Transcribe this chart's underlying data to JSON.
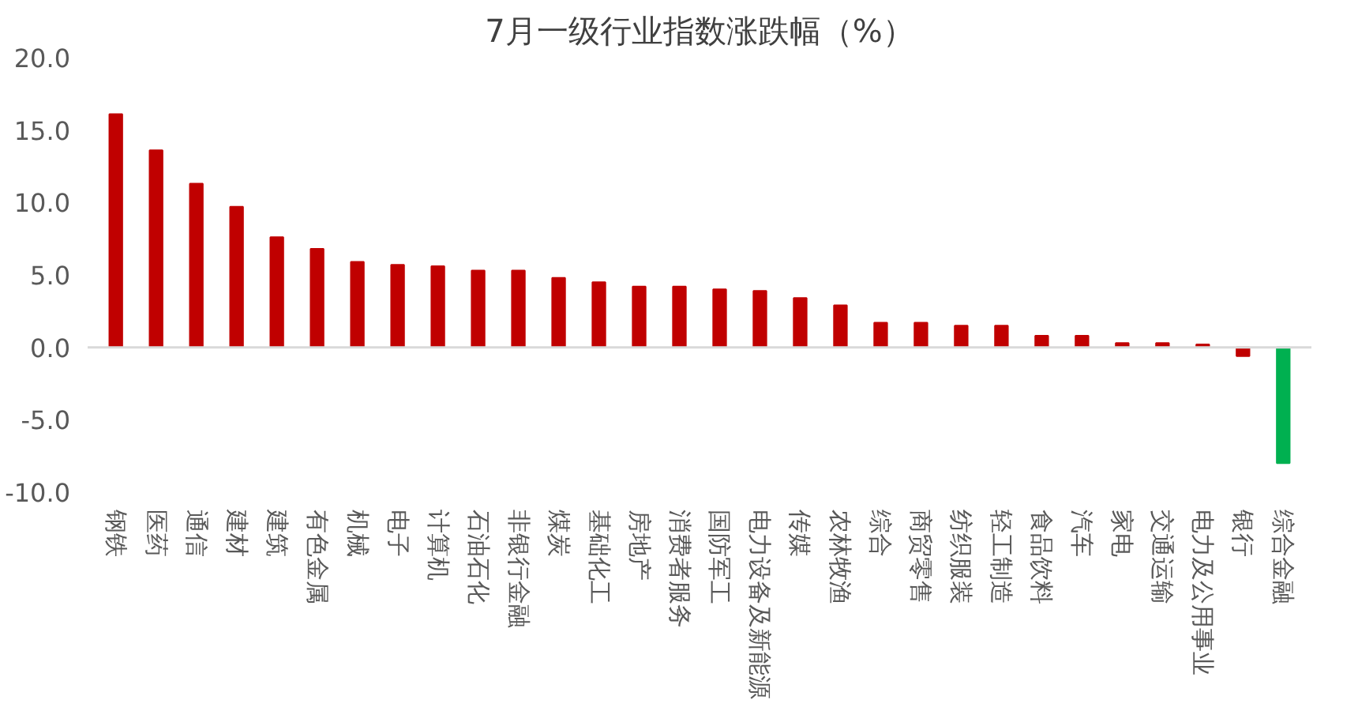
{
  "chart_data": {
    "type": "bar",
    "title": "7月一级行业指数涨跌幅（%）",
    "categories": [
      "钢铁",
      "医药",
      "通信",
      "建材",
      "建筑",
      "有色金属",
      "机械",
      "电子",
      "计算机",
      "石油石化",
      "非银行金融",
      "煤炭",
      "基础化工",
      "房地产",
      "消费者服务",
      "国防军工",
      "电力设备及新能源",
      "传媒",
      "农林牧渔",
      "综合",
      "商贸零售",
      "纺织服装",
      "轻工制造",
      "食品饮料",
      "汽车",
      "家电",
      "交通运输",
      "电力及公用事业",
      "银行",
      "综合金融"
    ],
    "values": [
      16.1,
      13.6,
      11.3,
      9.7,
      7.6,
      6.8,
      5.9,
      5.7,
      5.6,
      5.3,
      5.3,
      4.8,
      4.5,
      4.2,
      4.2,
      4.0,
      3.9,
      3.4,
      2.9,
      1.7,
      1.7,
      1.5,
      1.5,
      0.8,
      0.8,
      0.3,
      0.3,
      0.2,
      -0.6,
      -8.0
    ],
    "colors": [
      "#c00000",
      "#c00000",
      "#c00000",
      "#c00000",
      "#c00000",
      "#c00000",
      "#c00000",
      "#c00000",
      "#c00000",
      "#c00000",
      "#c00000",
      "#c00000",
      "#c00000",
      "#c00000",
      "#c00000",
      "#c00000",
      "#c00000",
      "#c00000",
      "#c00000",
      "#c00000",
      "#c00000",
      "#c00000",
      "#c00000",
      "#c00000",
      "#c00000",
      "#c00000",
      "#c00000",
      "#c00000",
      "#c00000",
      "#00b050"
    ],
    "ylim": [
      -10,
      20
    ],
    "yticks": [
      {
        "value": -10,
        "label": "-10.0"
      },
      {
        "value": -5,
        "label": "-5.0"
      },
      {
        "value": 0,
        "label": "0.0"
      },
      {
        "value": 5,
        "label": "5.0"
      },
      {
        "value": 10,
        "label": "10.0"
      },
      {
        "value": 15,
        "label": "15.0"
      },
      {
        "value": 20,
        "label": "20.0"
      }
    ]
  }
}
